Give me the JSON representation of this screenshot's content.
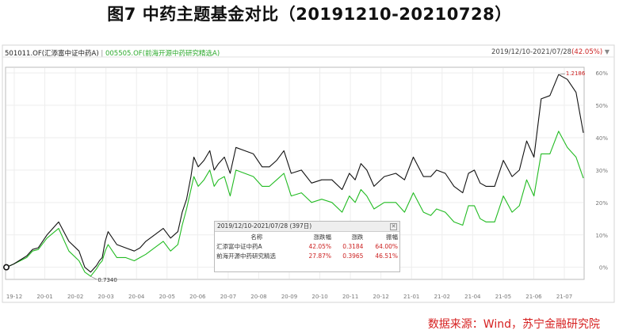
{
  "figure_title": "图7 中药主题基金对比（20191210-20210728）",
  "legend": {
    "series1_label": "501011.OF(汇添富中证中药A)",
    "separator": "|",
    "series2_label": "005505.OF(前海开源中药研究精选A)"
  },
  "range_display": {
    "dates": "2019/12/10-2021/07/28",
    "change": "(42.05%)",
    "triangle": "▼"
  },
  "source": "数据来源：Wind，苏宁金融研究院",
  "stat_panel": {
    "title": "2019/12/10-2021/07/28 (397日)",
    "close_icon": "✕",
    "headers": [
      "名称",
      "涨跌幅",
      "涨跌",
      "振幅"
    ],
    "rows": [
      {
        "name": "汇添富中证中药A",
        "change_pct": "42.05%",
        "change": "0.3184",
        "amplitude": "64.00%"
      },
      {
        "name": "前海开源中药研究精选",
        "change_pct": "27.87%",
        "change": "0.3965",
        "amplitude": "46.51%"
      }
    ]
  },
  "chart_data": {
    "type": "line",
    "x_tick_labels": [
      "19-12",
      "20-01",
      "20-02",
      "20-03",
      "20-04",
      "20-05",
      "20-06",
      "20-07",
      "20-08",
      "20-09",
      "20-10",
      "20-11",
      "20-12",
      "21-01",
      "21-02",
      "21-04",
      "21-05",
      "21-06",
      "21-07"
    ],
    "y_tick_labels": [
      "60%",
      "50%",
      "40%",
      "30%",
      "20%",
      "10%",
      "0%"
    ],
    "y_ticks": [
      60,
      50,
      40,
      30,
      20,
      10,
      0
    ],
    "ylim": [
      -3.5,
      61.5
    ],
    "annotations": {
      "max_label": "1.2186",
      "min_label": "0.7340"
    },
    "series": [
      {
        "name": "501011.OF(汇添富中证中药A)",
        "color": "#111111",
        "x": [
          0,
          5,
          14,
          18,
          22,
          28,
          36,
          43,
          50,
          54,
          58,
          62,
          64,
          66,
          68,
          70,
          76,
          82,
          88,
          92,
          96,
          102,
          108,
          113,
          118,
          121,
          124,
          127,
          129,
          132,
          136,
          140,
          143,
          146,
          150,
          154,
          158,
          164,
          170,
          176,
          181,
          186,
          191,
          196,
          203,
          210,
          217,
          224,
          231,
          236,
          240,
          244,
          248,
          253,
          260,
          268,
          274,
          280,
          287,
          292,
          296,
          302,
          308,
          314,
          318,
          322,
          326,
          330,
          336,
          342,
          348,
          353,
          358,
          363,
          368,
          374,
          380,
          386,
          392,
          397
        ],
        "y": [
          0,
          1,
          3.5,
          5.5,
          6,
          10,
          14,
          8,
          5,
          0,
          -1.5,
          0.5,
          2,
          3,
          8,
          11,
          7,
          6,
          5,
          6,
          8,
          10,
          12,
          9,
          11,
          17,
          21,
          28,
          34,
          31,
          33,
          36,
          30,
          32,
          34,
          29,
          37,
          36,
          35,
          31,
          31,
          33,
          36,
          29,
          30,
          26,
          27,
          27,
          24,
          29,
          27,
          32,
          30,
          25,
          28,
          29,
          27,
          34,
          28,
          28,
          30,
          29,
          25,
          23,
          29,
          30,
          26,
          25,
          25,
          33,
          28,
          30,
          39,
          34,
          52,
          53,
          59.5,
          58,
          54,
          41.5
        ]
      },
      {
        "name": "005505.OF(前海开源中药研究精选A)",
        "color": "#22bb22",
        "x": [
          0,
          5,
          14,
          18,
          22,
          28,
          36,
          43,
          50,
          54,
          58,
          62,
          64,
          66,
          68,
          70,
          76,
          82,
          88,
          92,
          96,
          102,
          108,
          113,
          118,
          121,
          124,
          127,
          129,
          132,
          136,
          140,
          143,
          146,
          150,
          154,
          158,
          164,
          170,
          176,
          181,
          186,
          191,
          196,
          203,
          210,
          217,
          224,
          231,
          236,
          240,
          244,
          248,
          253,
          260,
          268,
          274,
          280,
          287,
          292,
          296,
          302,
          308,
          314,
          318,
          322,
          326,
          330,
          336,
          342,
          348,
          353,
          358,
          363,
          368,
          374,
          380,
          386,
          392,
          397
        ],
        "y": [
          0,
          1,
          3,
          5,
          5.5,
          9,
          12,
          5,
          2,
          -1.5,
          -2.8,
          -0.5,
          1,
          2,
          5,
          7,
          3,
          3,
          2,
          3,
          4,
          6,
          8,
          5,
          7,
          13,
          18,
          24,
          28,
          25,
          27,
          30,
          25,
          27,
          28,
          22,
          30,
          29,
          28,
          25,
          25,
          27,
          29,
          22,
          23,
          20,
          21,
          20,
          17,
          22,
          20,
          24,
          22,
          18,
          20,
          20,
          17,
          23,
          17,
          16,
          18,
          17,
          14,
          13,
          19,
          19,
          15,
          14,
          14,
          22,
          17,
          19,
          27,
          22,
          35,
          35,
          42,
          37,
          34,
          27.5
        ]
      }
    ]
  }
}
